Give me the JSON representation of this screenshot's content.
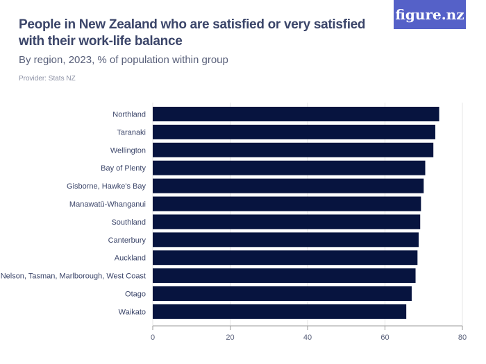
{
  "header": {
    "title": "People in New Zealand who are satisfied or very satisfied with their work-life balance",
    "subtitle": "By region, 2023, % of population within group",
    "provider": "Provider: Stats NZ",
    "logo": "figure.nz"
  },
  "chart_data": {
    "type": "bar",
    "orientation": "horizontal",
    "title": "People in New Zealand who are satisfied or very satisfied with their work-life balance",
    "subtitle": "By region, 2023, % of population within group",
    "categories": [
      "Northland",
      "Taranaki",
      "Wellington",
      "Bay of Plenty",
      "Gisborne, Hawke's Bay",
      "Manawatū-Whanganui",
      "Southland",
      "Canterbury",
      "Auckland",
      "Nelson, Tasman, Marlborough, West Coast",
      "Otago",
      "Waikato"
    ],
    "values": [
      74.0,
      73.0,
      72.5,
      70.4,
      70.0,
      69.3,
      69.1,
      68.7,
      68.4,
      67.9,
      66.9,
      65.5
    ],
    "xlim": [
      0,
      80
    ],
    "ticks": [
      0,
      20,
      40,
      60,
      80
    ],
    "grid": true,
    "bar_color": "#07143f",
    "xlabel": "",
    "ylabel": ""
  }
}
